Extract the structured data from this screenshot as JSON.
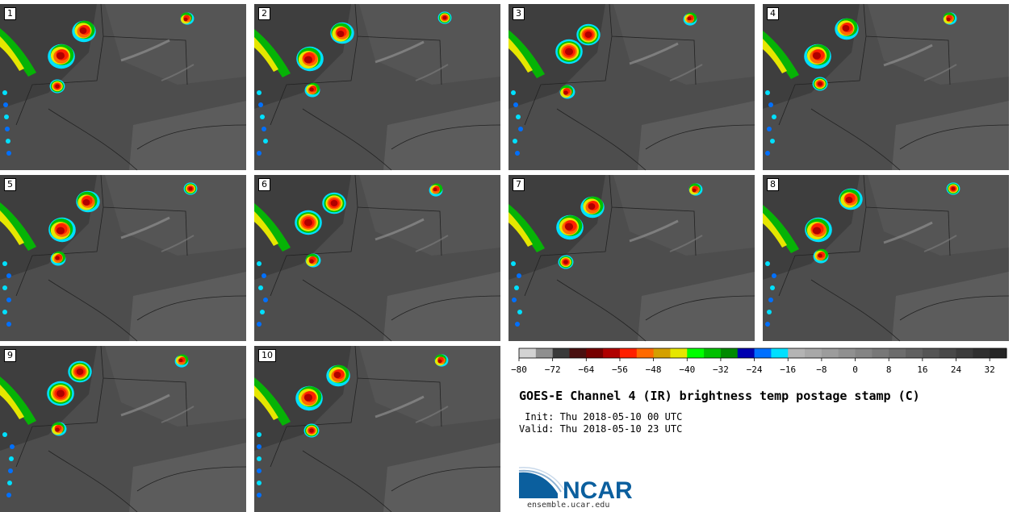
{
  "panels": [
    {
      "label": "1"
    },
    {
      "label": "2"
    },
    {
      "label": "3"
    },
    {
      "label": "4"
    },
    {
      "label": "5"
    },
    {
      "label": "6"
    },
    {
      "label": "7"
    },
    {
      "label": "8"
    },
    {
      "label": "9"
    },
    {
      "label": "10"
    }
  ],
  "colorbar": {
    "colors": [
      "#d3d3d3",
      "#8f8f8f",
      "#3a3a3a",
      "#4a1010",
      "#760000",
      "#b00000",
      "#ff2000",
      "#ff6a00",
      "#d4a000",
      "#e6e600",
      "#00ff00",
      "#00c000",
      "#008a00",
      "#0000b0",
      "#0070ff",
      "#00e0ff",
      "#b4b4b4",
      "#a8a8a8",
      "#9c9c9c",
      "#909090",
      "#848484",
      "#787878",
      "#6c6c6c",
      "#606060",
      "#545454",
      "#484848",
      "#3c3c3c",
      "#303030",
      "#262626"
    ],
    "tick_labels": [
      "−80",
      "−72",
      "−64",
      "−56",
      "−48",
      "−40",
      "−32",
      "−24",
      "−16",
      "−8",
      "0",
      "8",
      "16",
      "24",
      "32"
    ]
  },
  "title": "GOES-E Channel 4 (IR) brightness temp postage stamp (C)",
  "init_text": " Init: Thu 2018-05-10 00 UTC",
  "valid_text": "Valid: Thu 2018-05-10 23 UTC",
  "logo": {
    "text": "NCAR",
    "url": "ensemble.ucar.edu",
    "color": "#0b5f9e"
  }
}
